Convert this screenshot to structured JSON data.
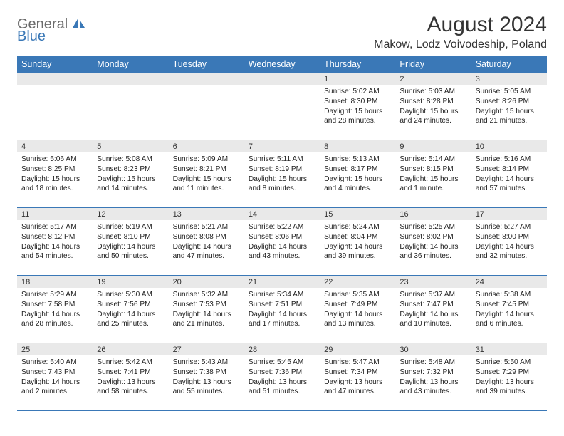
{
  "logo": {
    "text_top": "General",
    "text_bottom": "Blue"
  },
  "title": "August 2024",
  "location": "Makow, Lodz Voivodeship, Poland",
  "colors": {
    "header_bg": "#3a78b7",
    "header_fg": "#ffffff",
    "daynum_bg": "#e9e9e9",
    "cell_border": "#3a78b7",
    "text": "#222222",
    "logo_grey": "#6a6a6a",
    "logo_blue": "#3a78b7"
  },
  "typography": {
    "title_fontsize": 30,
    "location_fontsize": 16,
    "dayheader_fontsize": 12.5,
    "detail_fontsize": 10.2
  },
  "day_headers": [
    "Sunday",
    "Monday",
    "Tuesday",
    "Wednesday",
    "Thursday",
    "Friday",
    "Saturday"
  ],
  "weeks": [
    [
      {
        "empty": true
      },
      {
        "empty": true
      },
      {
        "empty": true
      },
      {
        "empty": true
      },
      {
        "num": "1",
        "sunrise": "Sunrise: 5:02 AM",
        "sunset": "Sunset: 8:30 PM",
        "dl1": "Daylight: 15 hours",
        "dl2": "and 28 minutes."
      },
      {
        "num": "2",
        "sunrise": "Sunrise: 5:03 AM",
        "sunset": "Sunset: 8:28 PM",
        "dl1": "Daylight: 15 hours",
        "dl2": "and 24 minutes."
      },
      {
        "num": "3",
        "sunrise": "Sunrise: 5:05 AM",
        "sunset": "Sunset: 8:26 PM",
        "dl1": "Daylight: 15 hours",
        "dl2": "and 21 minutes."
      }
    ],
    [
      {
        "num": "4",
        "sunrise": "Sunrise: 5:06 AM",
        "sunset": "Sunset: 8:25 PM",
        "dl1": "Daylight: 15 hours",
        "dl2": "and 18 minutes."
      },
      {
        "num": "5",
        "sunrise": "Sunrise: 5:08 AM",
        "sunset": "Sunset: 8:23 PM",
        "dl1": "Daylight: 15 hours",
        "dl2": "and 14 minutes."
      },
      {
        "num": "6",
        "sunrise": "Sunrise: 5:09 AM",
        "sunset": "Sunset: 8:21 PM",
        "dl1": "Daylight: 15 hours",
        "dl2": "and 11 minutes."
      },
      {
        "num": "7",
        "sunrise": "Sunrise: 5:11 AM",
        "sunset": "Sunset: 8:19 PM",
        "dl1": "Daylight: 15 hours",
        "dl2": "and 8 minutes."
      },
      {
        "num": "8",
        "sunrise": "Sunrise: 5:13 AM",
        "sunset": "Sunset: 8:17 PM",
        "dl1": "Daylight: 15 hours",
        "dl2": "and 4 minutes."
      },
      {
        "num": "9",
        "sunrise": "Sunrise: 5:14 AM",
        "sunset": "Sunset: 8:15 PM",
        "dl1": "Daylight: 15 hours",
        "dl2": "and 1 minute."
      },
      {
        "num": "10",
        "sunrise": "Sunrise: 5:16 AM",
        "sunset": "Sunset: 8:14 PM",
        "dl1": "Daylight: 14 hours",
        "dl2": "and 57 minutes."
      }
    ],
    [
      {
        "num": "11",
        "sunrise": "Sunrise: 5:17 AM",
        "sunset": "Sunset: 8:12 PM",
        "dl1": "Daylight: 14 hours",
        "dl2": "and 54 minutes."
      },
      {
        "num": "12",
        "sunrise": "Sunrise: 5:19 AM",
        "sunset": "Sunset: 8:10 PM",
        "dl1": "Daylight: 14 hours",
        "dl2": "and 50 minutes."
      },
      {
        "num": "13",
        "sunrise": "Sunrise: 5:21 AM",
        "sunset": "Sunset: 8:08 PM",
        "dl1": "Daylight: 14 hours",
        "dl2": "and 47 minutes."
      },
      {
        "num": "14",
        "sunrise": "Sunrise: 5:22 AM",
        "sunset": "Sunset: 8:06 PM",
        "dl1": "Daylight: 14 hours",
        "dl2": "and 43 minutes."
      },
      {
        "num": "15",
        "sunrise": "Sunrise: 5:24 AM",
        "sunset": "Sunset: 8:04 PM",
        "dl1": "Daylight: 14 hours",
        "dl2": "and 39 minutes."
      },
      {
        "num": "16",
        "sunrise": "Sunrise: 5:25 AM",
        "sunset": "Sunset: 8:02 PM",
        "dl1": "Daylight: 14 hours",
        "dl2": "and 36 minutes."
      },
      {
        "num": "17",
        "sunrise": "Sunrise: 5:27 AM",
        "sunset": "Sunset: 8:00 PM",
        "dl1": "Daylight: 14 hours",
        "dl2": "and 32 minutes."
      }
    ],
    [
      {
        "num": "18",
        "sunrise": "Sunrise: 5:29 AM",
        "sunset": "Sunset: 7:58 PM",
        "dl1": "Daylight: 14 hours",
        "dl2": "and 28 minutes."
      },
      {
        "num": "19",
        "sunrise": "Sunrise: 5:30 AM",
        "sunset": "Sunset: 7:56 PM",
        "dl1": "Daylight: 14 hours",
        "dl2": "and 25 minutes."
      },
      {
        "num": "20",
        "sunrise": "Sunrise: 5:32 AM",
        "sunset": "Sunset: 7:53 PM",
        "dl1": "Daylight: 14 hours",
        "dl2": "and 21 minutes."
      },
      {
        "num": "21",
        "sunrise": "Sunrise: 5:34 AM",
        "sunset": "Sunset: 7:51 PM",
        "dl1": "Daylight: 14 hours",
        "dl2": "and 17 minutes."
      },
      {
        "num": "22",
        "sunrise": "Sunrise: 5:35 AM",
        "sunset": "Sunset: 7:49 PM",
        "dl1": "Daylight: 14 hours",
        "dl2": "and 13 minutes."
      },
      {
        "num": "23",
        "sunrise": "Sunrise: 5:37 AM",
        "sunset": "Sunset: 7:47 PM",
        "dl1": "Daylight: 14 hours",
        "dl2": "and 10 minutes."
      },
      {
        "num": "24",
        "sunrise": "Sunrise: 5:38 AM",
        "sunset": "Sunset: 7:45 PM",
        "dl1": "Daylight: 14 hours",
        "dl2": "and 6 minutes."
      }
    ],
    [
      {
        "num": "25",
        "sunrise": "Sunrise: 5:40 AM",
        "sunset": "Sunset: 7:43 PM",
        "dl1": "Daylight: 14 hours",
        "dl2": "and 2 minutes."
      },
      {
        "num": "26",
        "sunrise": "Sunrise: 5:42 AM",
        "sunset": "Sunset: 7:41 PM",
        "dl1": "Daylight: 13 hours",
        "dl2": "and 58 minutes."
      },
      {
        "num": "27",
        "sunrise": "Sunrise: 5:43 AM",
        "sunset": "Sunset: 7:38 PM",
        "dl1": "Daylight: 13 hours",
        "dl2": "and 55 minutes."
      },
      {
        "num": "28",
        "sunrise": "Sunrise: 5:45 AM",
        "sunset": "Sunset: 7:36 PM",
        "dl1": "Daylight: 13 hours",
        "dl2": "and 51 minutes."
      },
      {
        "num": "29",
        "sunrise": "Sunrise: 5:47 AM",
        "sunset": "Sunset: 7:34 PM",
        "dl1": "Daylight: 13 hours",
        "dl2": "and 47 minutes."
      },
      {
        "num": "30",
        "sunrise": "Sunrise: 5:48 AM",
        "sunset": "Sunset: 7:32 PM",
        "dl1": "Daylight: 13 hours",
        "dl2": "and 43 minutes."
      },
      {
        "num": "31",
        "sunrise": "Sunrise: 5:50 AM",
        "sunset": "Sunset: 7:29 PM",
        "dl1": "Daylight: 13 hours",
        "dl2": "and 39 minutes."
      }
    ]
  ]
}
